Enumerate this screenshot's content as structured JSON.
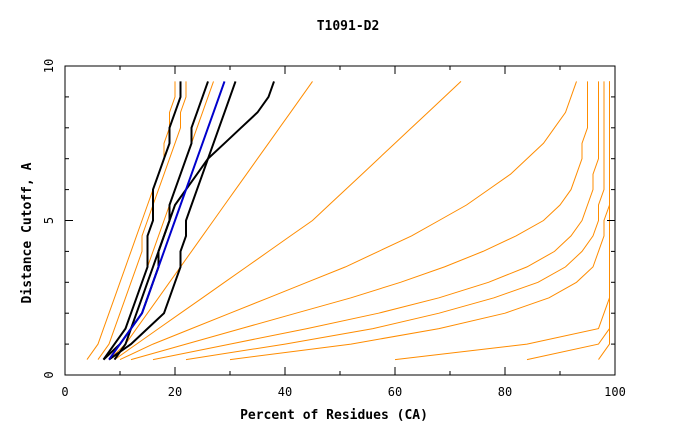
{
  "chart_data": {
    "type": "line",
    "title": "T1091-D2",
    "xlabel": "Percent of Residues (CA)",
    "ylabel": "Distance Cutoff, A",
    "xlim": [
      0,
      100
    ],
    "ylim": [
      0,
      10
    ],
    "x_ticks": [
      "0",
      "20",
      "40",
      "60",
      "80",
      "100"
    ],
    "y_ticks": [
      "0",
      "5",
      "10"
    ],
    "grid": false,
    "legend": "none",
    "colors": {
      "group_models": "#ff8c00",
      "highlight_black": "#000000",
      "highlight_blue": "#0000cc",
      "axes": "#000000"
    },
    "y_levels": [
      0.5,
      1.0,
      1.5,
      2.0,
      2.5,
      3.0,
      3.5,
      4.0,
      4.5,
      5.0,
      5.5,
      6.0,
      6.5,
      7.0,
      7.5,
      8.0,
      8.5,
      9.0,
      9.5
    ],
    "series": [
      {
        "group": "orange",
        "x": [
          4,
          6,
          7,
          8,
          9,
          10,
          11,
          12,
          13,
          14,
          15,
          16,
          17,
          18,
          18,
          19,
          19,
          20,
          20
        ]
      },
      {
        "group": "orange",
        "x": [
          6,
          8,
          9,
          10,
          11,
          12,
          13,
          14,
          14,
          15,
          16,
          17,
          18,
          19,
          20,
          21,
          21,
          22,
          22
        ]
      },
      {
        "group": "orange",
        "x": [
          7,
          9,
          11,
          12,
          13,
          14,
          15,
          16,
          17,
          18,
          19,
          20,
          21,
          22,
          23,
          24,
          25,
          26,
          27
        ]
      },
      {
        "group": "orange",
        "x": [
          8,
          11,
          13,
          15,
          17,
          19,
          21,
          23,
          25,
          27,
          29,
          31,
          33,
          35,
          37,
          39,
          41,
          43,
          45
        ]
      },
      {
        "group": "orange",
        "x": [
          9,
          13,
          17,
          21,
          25,
          29,
          33,
          37,
          41,
          45,
          48,
          51,
          54,
          57,
          60,
          63,
          66,
          69,
          72
        ]
      },
      {
        "group": "orange",
        "x": [
          10,
          16,
          23,
          30,
          37,
          44,
          51,
          57,
          63,
          68,
          73,
          77,
          81,
          84,
          87,
          89,
          91,
          92,
          93
        ]
      },
      {
        "group": "orange",
        "x": [
          12,
          22,
          32,
          42,
          52,
          61,
          69,
          76,
          82,
          87,
          90,
          92,
          93,
          94,
          94,
          95,
          95,
          95,
          95
        ]
      },
      {
        "group": "orange",
        "x": [
          16,
          30,
          44,
          57,
          68,
          77,
          84,
          89,
          92,
          94,
          95,
          96,
          96,
          97,
          97,
          97,
          97,
          97,
          97
        ]
      },
      {
        "group": "orange",
        "x": [
          22,
          40,
          56,
          68,
          78,
          86,
          91,
          94,
          96,
          97,
          97,
          98,
          98,
          98,
          98,
          98,
          98,
          98,
          98
        ]
      },
      {
        "group": "orange",
        "x": [
          30,
          52,
          68,
          80,
          88,
          93,
          96,
          97,
          98,
          98,
          99,
          99,
          99,
          99,
          99,
          99,
          99,
          99,
          99
        ]
      },
      {
        "group": "orange",
        "x": [
          60,
          84,
          97,
          98,
          99,
          99,
          99,
          99,
          99,
          99,
          99,
          99,
          99,
          99,
          99,
          99,
          99,
          99,
          99
        ]
      },
      {
        "group": "orange",
        "x": [
          84,
          97,
          99,
          99,
          99,
          99,
          99,
          99,
          99,
          99,
          99,
          99,
          99,
          99,
          99,
          99,
          99,
          99,
          99
        ]
      },
      {
        "group": "orange",
        "x": [
          97,
          99,
          99,
          99,
          99,
          99,
          99,
          99,
          99,
          99,
          99,
          99,
          99,
          99,
          99,
          99,
          99,
          99,
          99
        ]
      },
      {
        "group": "black",
        "x": [
          7,
          9,
          11,
          12,
          13,
          14,
          15,
          15,
          15,
          16,
          16,
          16,
          17,
          18,
          19,
          19,
          20,
          21,
          21
        ]
      },
      {
        "group": "black",
        "x": [
          7,
          10,
          12,
          14,
          15,
          16,
          17,
          17,
          18,
          19,
          19,
          20,
          21,
          22,
          23,
          23,
          24,
          25,
          26
        ]
      },
      {
        "group": "black",
        "x": [
          8,
          12,
          15,
          18,
          19,
          20,
          21,
          21,
          22,
          22,
          23,
          24,
          25,
          26,
          27,
          28,
          29,
          30,
          31
        ]
      },
      {
        "group": "black",
        "x": [
          9,
          11,
          12,
          13,
          14,
          15,
          16,
          17,
          18,
          19,
          20,
          22,
          24,
          26,
          29,
          32,
          35,
          37,
          38
        ]
      },
      {
        "group": "blue",
        "x": [
          8,
          10,
          12,
          14,
          15,
          16,
          17,
          18,
          19,
          20,
          21,
          22,
          23,
          24,
          25,
          26,
          27,
          28,
          29
        ]
      }
    ]
  }
}
